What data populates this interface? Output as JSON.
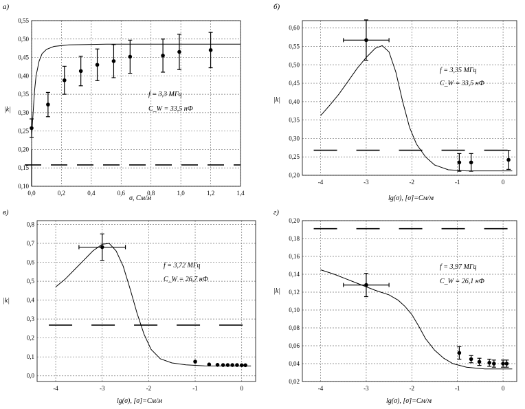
{
  "chart_data": [
    {
      "panel": "а)",
      "type": "scatter",
      "xlabel": "σ, См/м",
      "ylabel": "|k|",
      "xlim": [
        0,
        1.4
      ],
      "ylim": [
        0.1,
        0.55
      ],
      "xticks": [
        0.0,
        0.2,
        0.4,
        0.6,
        0.8,
        1.0,
        1.2,
        1.4
      ],
      "yticks": [
        0.1,
        0.15,
        0.2,
        0.25,
        0.3,
        0.35,
        0.4,
        0.45,
        0.5,
        0.55
      ],
      "xtick_labels": [
        "0,0",
        "0,2",
        "0,4",
        "0,6",
        "0,8",
        "1,0",
        "1,2",
        "1,4"
      ],
      "ytick_labels": [
        "0,10",
        "0,15",
        "0,20",
        "0,25",
        "0,30",
        "0,35",
        "0,40",
        "0,45",
        "0,50",
        "0,55"
      ],
      "annotation": [
        "f = 3,3 МГц",
        "C_W = 33,5 нФ"
      ],
      "points": [
        {
          "x": 0.0,
          "y": 0.258,
          "err": 0.025
        },
        {
          "x": 0.11,
          "y": 0.322,
          "err": 0.033
        },
        {
          "x": 0.22,
          "y": 0.388,
          "err": 0.038
        },
        {
          "x": 0.33,
          "y": 0.413,
          "err": 0.04
        },
        {
          "x": 0.44,
          "y": 0.43,
          "err": 0.043
        },
        {
          "x": 0.55,
          "y": 0.44,
          "err": 0.045
        },
        {
          "x": 0.66,
          "y": 0.452,
          "err": 0.045
        },
        {
          "x": 0.88,
          "y": 0.455,
          "err": 0.045
        },
        {
          "x": 0.99,
          "y": 0.465,
          "err": 0.048
        },
        {
          "x": 1.2,
          "y": 0.47,
          "err": 0.048
        }
      ],
      "model_curve": [
        [
          0.0,
          0.235
        ],
        [
          0.01,
          0.3
        ],
        [
          0.02,
          0.36
        ],
        [
          0.03,
          0.4
        ],
        [
          0.05,
          0.44
        ],
        [
          0.07,
          0.46
        ],
        [
          0.1,
          0.472
        ],
        [
          0.15,
          0.48
        ],
        [
          0.25,
          0.484
        ],
        [
          0.5,
          0.486
        ],
        [
          1.0,
          0.486
        ],
        [
          1.4,
          0.486
        ]
      ],
      "dashed_level": 0.158,
      "dashed_range": [
        0.0,
        1.4
      ],
      "error_origin_spike": {
        "x": 0.0,
        "y_from": 0.1,
        "y_to": 0.2
      }
    },
    {
      "panel": "б)",
      "type": "scatter",
      "xlabel": "lg(σ), [σ]=См/м",
      "ylabel": "|k|",
      "xlim": [
        -4.4,
        0.3
      ],
      "ylim": [
        0.2,
        0.62
      ],
      "xticks": [
        -4,
        -3,
        -2,
        -1,
        0
      ],
      "yticks": [
        0.2,
        0.25,
        0.3,
        0.35,
        0.4,
        0.45,
        0.5,
        0.55,
        0.6
      ],
      "xtick_labels": [
        "-4",
        "-3",
        "-2",
        "-1",
        "0"
      ],
      "ytick_labels": [
        "0,20",
        "0,25",
        "0,30",
        "0,35",
        "0,40",
        "0,45",
        "0,50",
        "0,55",
        "0,60"
      ],
      "annotation": [
        "f = 3,35 МГц",
        "C_W = 33,5 нФ"
      ],
      "points": [
        {
          "x": -3.0,
          "y": 0.567,
          "err": 0.055,
          "xerr": 0.5
        },
        {
          "x": -0.96,
          "y": 0.235,
          "err": 0.024
        },
        {
          "x": -0.7,
          "y": 0.235,
          "err": 0.024
        },
        {
          "x": 0.12,
          "y": 0.242,
          "err": 0.026
        }
      ],
      "model_curve": [
        [
          -4.0,
          0.362
        ],
        [
          -3.8,
          0.39
        ],
        [
          -3.6,
          0.42
        ],
        [
          -3.4,
          0.455
        ],
        [
          -3.2,
          0.49
        ],
        [
          -3.0,
          0.52
        ],
        [
          -2.8,
          0.545
        ],
        [
          -2.65,
          0.552
        ],
        [
          -2.5,
          0.535
        ],
        [
          -2.35,
          0.48
        ],
        [
          -2.2,
          0.4
        ],
        [
          -2.05,
          0.33
        ],
        [
          -1.9,
          0.285
        ],
        [
          -1.7,
          0.25
        ],
        [
          -1.5,
          0.228
        ],
        [
          -1.2,
          0.215
        ],
        [
          -0.8,
          0.212
        ],
        [
          0.2,
          0.212
        ]
      ],
      "dashed_level": 0.268,
      "dashed_range": [
        -4.0,
        0.2
      ]
    },
    {
      "panel": "в)",
      "type": "scatter",
      "xlabel": "lg(σ), [σ]=См/м",
      "ylabel": "|k|",
      "xlim": [
        -4.4,
        0.3
      ],
      "ylim": [
        -0.03,
        0.82
      ],
      "xticks": [
        -4,
        -3,
        -2,
        -1,
        0
      ],
      "yticks": [
        0.0,
        0.1,
        0.2,
        0.3,
        0.4,
        0.5,
        0.6,
        0.7,
        0.8
      ],
      "xtick_labels": [
        "-4",
        "-3",
        "-2",
        "-1",
        "0"
      ],
      "ytick_labels": [
        "0,0",
        "0,1",
        "0,2",
        "0,3",
        "0,4",
        "0,5",
        "0,6",
        "0,7",
        "0,8"
      ],
      "annotation": [
        "f = 3,72 МГц",
        "C_W = 26,7 нФ"
      ],
      "points": [
        {
          "x": -3.0,
          "y": 0.68,
          "err": 0.07,
          "xerr": 0.5
        },
        {
          "x": -1.0,
          "y": 0.075,
          "err": 0.0
        },
        {
          "x": -0.7,
          "y": 0.06,
          "err": 0.0
        },
        {
          "x": -0.52,
          "y": 0.058,
          "err": 0.0
        },
        {
          "x": -0.4,
          "y": 0.057,
          "err": 0.0
        },
        {
          "x": -0.3,
          "y": 0.057,
          "err": 0.0
        },
        {
          "x": -0.2,
          "y": 0.057,
          "err": 0.0
        },
        {
          "x": -0.1,
          "y": 0.057,
          "err": 0.0
        },
        {
          "x": 0.0,
          "y": 0.056,
          "err": 0.0
        },
        {
          "x": 0.08,
          "y": 0.056,
          "err": 0.0
        }
      ],
      "model_curve": [
        [
          -4.0,
          0.47
        ],
        [
          -3.8,
          0.51
        ],
        [
          -3.6,
          0.56
        ],
        [
          -3.4,
          0.61
        ],
        [
          -3.2,
          0.66
        ],
        [
          -3.0,
          0.695
        ],
        [
          -2.85,
          0.7
        ],
        [
          -2.7,
          0.66
        ],
        [
          -2.55,
          0.58
        ],
        [
          -2.4,
          0.46
        ],
        [
          -2.25,
          0.33
        ],
        [
          -2.1,
          0.22
        ],
        [
          -1.95,
          0.14
        ],
        [
          -1.75,
          0.09
        ],
        [
          -1.5,
          0.068
        ],
        [
          -1.2,
          0.058
        ],
        [
          -0.8,
          0.053
        ],
        [
          0.2,
          0.052
        ]
      ],
      "dashed_level": 0.268,
      "dashed_range": [
        -4.0,
        0.2
      ]
    },
    {
      "panel": "г)",
      "type": "scatter",
      "xlabel": "lg(σ), [σ]=См/м",
      "ylabel": "|k|",
      "xlim": [
        -4.4,
        0.3
      ],
      "ylim": [
        0.02,
        0.2
      ],
      "xticks": [
        -4,
        -3,
        -2,
        -1,
        0
      ],
      "yticks": [
        0.02,
        0.04,
        0.06,
        0.08,
        0.1,
        0.12,
        0.14,
        0.16,
        0.18,
        0.2
      ],
      "xtick_labels": [
        "-4",
        "-3",
        "-2",
        "-1",
        "0"
      ],
      "ytick_labels": [
        "0,02",
        "0,04",
        "0,06",
        "0,08",
        "0,10",
        "0,12",
        "0,14",
        "0,16",
        "0,18",
        "0,20"
      ],
      "annotation": [
        "f = 3,97 МГц",
        "C_W = 26,1 нФ"
      ],
      "points": [
        {
          "x": -3.0,
          "y": 0.128,
          "err": 0.013,
          "xerr": 0.5
        },
        {
          "x": -0.96,
          "y": 0.052,
          "err": 0.007
        },
        {
          "x": -0.7,
          "y": 0.045,
          "err": 0.004
        },
        {
          "x": -0.52,
          "y": 0.042,
          "err": 0.004
        },
        {
          "x": -0.3,
          "y": 0.041,
          "err": 0.004
        },
        {
          "x": -0.2,
          "y": 0.04,
          "err": 0.004
        },
        {
          "x": 0.0,
          "y": 0.04,
          "err": 0.004
        },
        {
          "x": 0.08,
          "y": 0.04,
          "err": 0.004
        }
      ],
      "model_curve": [
        [
          -4.0,
          0.145
        ],
        [
          -3.7,
          0.14
        ],
        [
          -3.4,
          0.134
        ],
        [
          -3.1,
          0.128
        ],
        [
          -2.8,
          0.122
        ],
        [
          -2.5,
          0.117
        ],
        [
          -2.3,
          0.111
        ],
        [
          -2.15,
          0.104
        ],
        [
          -2.0,
          0.095
        ],
        [
          -1.85,
          0.082
        ],
        [
          -1.7,
          0.068
        ],
        [
          -1.5,
          0.055
        ],
        [
          -1.3,
          0.046
        ],
        [
          -1.1,
          0.04
        ],
        [
          -0.8,
          0.036
        ],
        [
          -0.4,
          0.034
        ],
        [
          0.2,
          0.034
        ]
      ],
      "dashed_level": 0.191,
      "dashed_range": [
        -4.0,
        0.2
      ]
    }
  ]
}
